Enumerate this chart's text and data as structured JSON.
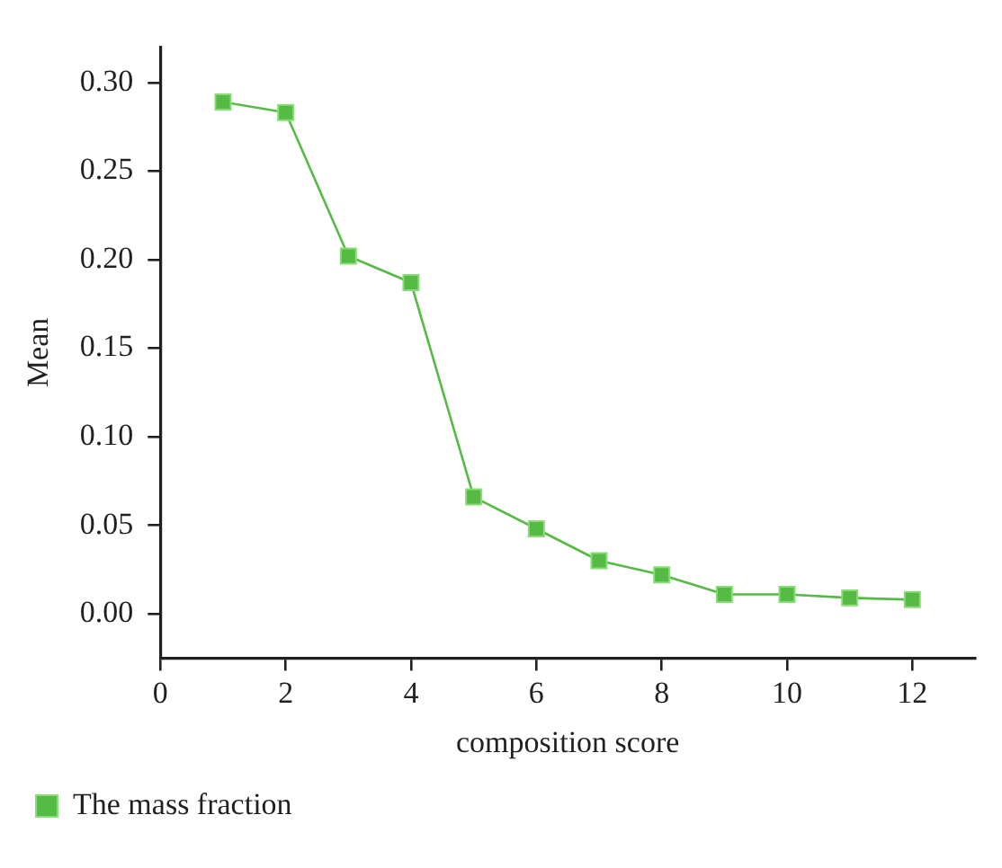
{
  "chart_data": {
    "type": "line",
    "xlabel": "composition score",
    "ylabel": "Mean",
    "x": [
      1,
      2,
      3,
      4,
      5,
      6,
      7,
      8,
      9,
      10,
      11,
      12
    ],
    "series": [
      {
        "name": "The mass fraction",
        "color": "#55bb44",
        "values": [
          0.289,
          0.283,
          0.202,
          0.187,
          0.066,
          0.048,
          0.03,
          0.022,
          0.011,
          0.011,
          0.009,
          0.008
        ]
      }
    ],
    "xlim": [
      0,
      13
    ],
    "xticks": [
      0,
      2,
      4,
      6,
      8,
      10,
      12
    ],
    "ylim": [
      -0.025,
      0.32
    ],
    "yticks": [
      {
        "value": 0,
        "label": "0.00"
      },
      {
        "value": 0.05,
        "label": "0.05"
      },
      {
        "value": 0.1,
        "label": "0.10"
      },
      {
        "value": 0.15,
        "label": "0.15"
      },
      {
        "value": 0.2,
        "label": "0.20"
      },
      {
        "value": 0.25,
        "label": "0.25"
      },
      {
        "value": 0.3,
        "label": "0.30"
      }
    ],
    "grid": false,
    "legend": "bottom left",
    "marker": "square",
    "line_style": "solid"
  }
}
